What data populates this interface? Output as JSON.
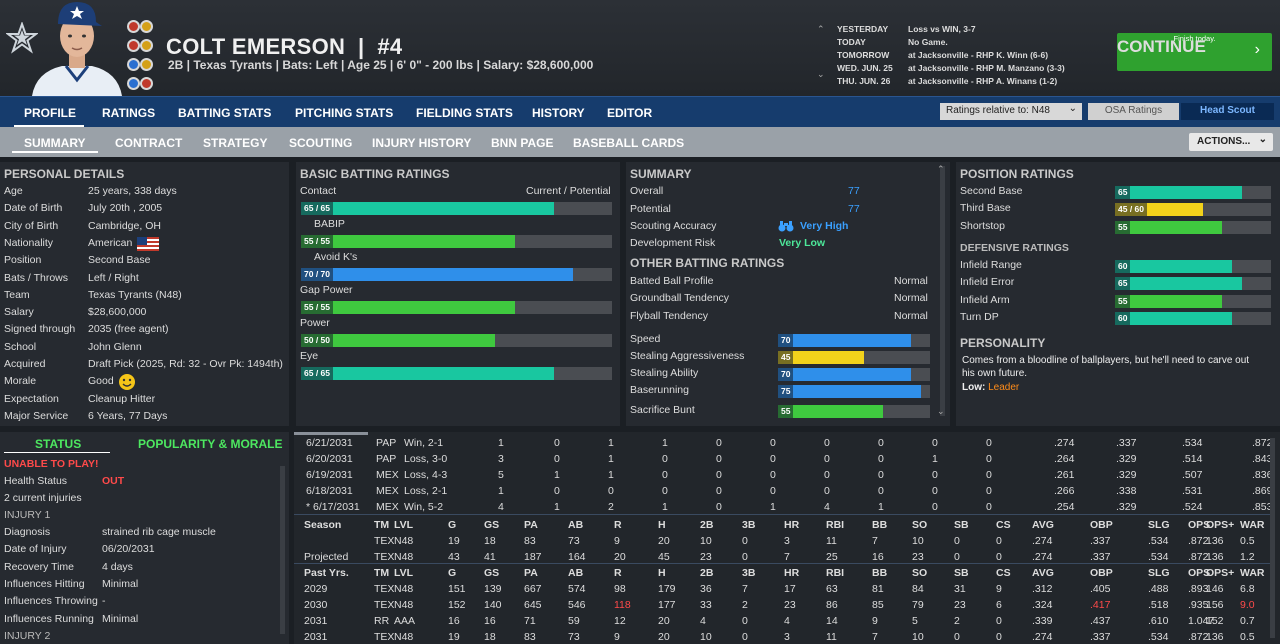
{
  "header": {
    "name": "COLT EMERSON",
    "number": "#4",
    "subline": "2B | Texas Tyrants | Bats: Left | Age 25 | 6' 0\" - 200 lbs | Salary: $28,600,000",
    "schedule": [
      {
        "day": "YESTERDAY",
        "info": "Loss vs WIN, 3-7"
      },
      {
        "day": "TODAY",
        "info": "No Game."
      },
      {
        "day": "TOMORROW",
        "info": "at Jacksonville - RHP K. Winn (6-6)"
      },
      {
        "day": "WED. JUN. 25",
        "info": "at Jacksonville - RHP M. Manzano (3-3)"
      },
      {
        "day": "THU. JUN. 26",
        "info": "at Jacksonville - RHP A. Winans (1-2)"
      }
    ],
    "continue_label": "CONTINUE",
    "continue_sub": "Finish today."
  },
  "nav1": {
    "items": [
      "PROFILE",
      "RATINGS",
      "BATTING STATS",
      "PITCHING STATS",
      "FIELDING STATS",
      "HISTORY",
      "EDITOR"
    ],
    "relative_label": "Ratings relative to: N48",
    "osa_label": "OSA Ratings",
    "scout_label": "Head Scout"
  },
  "nav2": {
    "items": [
      "SUMMARY",
      "CONTRACT",
      "STRATEGY",
      "SCOUTING",
      "INJURY HISTORY",
      "BNN PAGE",
      "BASEBALL CARDS"
    ],
    "actions_label": "ACTIONS..."
  },
  "personal": {
    "title": "PERSONAL DETAILS",
    "rows": [
      {
        "label": "Age",
        "value": "25 years, 338 days"
      },
      {
        "label": "Date of Birth",
        "value": "July 20th , 2005"
      },
      {
        "label": "City of Birth",
        "value": "Cambridge, OH"
      },
      {
        "label": "Nationality",
        "value": "American"
      },
      {
        "label": "Position",
        "value": "Second Base"
      },
      {
        "label": "Bats / Throws",
        "value": "Left / Right"
      },
      {
        "label": "Team",
        "value": "Texas Tyrants (N48)"
      },
      {
        "label": "Salary",
        "value": "$28,600,000"
      },
      {
        "label": "Signed through",
        "value": "2035 (free agent)"
      },
      {
        "label": "School",
        "value": "John Glenn"
      },
      {
        "label": "Acquired",
        "value": "Draft Pick (2025, Rd: 32 - Ovr Pk: 1494th)"
      },
      {
        "label": "Morale",
        "value": "Good"
      },
      {
        "label": "Expectation",
        "value": "Cleanup Hitter"
      },
      {
        "label": "Major Service",
        "value": "6 Years, 77 Days"
      }
    ]
  },
  "batting": {
    "title": "BASIC BATTING RATINGS",
    "header_right": "Current / Potential",
    "ratings": [
      {
        "label": "Contact",
        "text": "65 / 65",
        "value": 65,
        "color": "#19c7a0"
      },
      {
        "label": "BABIP",
        "text": "55 / 55",
        "value": 55,
        "color": "#3fc93f"
      },
      {
        "label": "Avoid K's",
        "text": "70 / 70",
        "value": 70,
        "color": "#2f8fea"
      },
      {
        "label": "Gap Power",
        "text": "55 / 55",
        "value": 55,
        "color": "#3fc93f"
      },
      {
        "label": "Power",
        "text": "50 / 50",
        "value": 50,
        "color": "#3fc93f"
      },
      {
        "label": "Eye",
        "text": "65 / 65",
        "value": 65,
        "color": "#19c7a0"
      }
    ]
  },
  "summary": {
    "title": "SUMMARY",
    "overall_label": "Overall",
    "overall": "77",
    "potential_label": "Potential",
    "potential": "77",
    "scouting_label": "Scouting Accuracy",
    "scouting": "Very High",
    "dev_label": "Development Risk",
    "dev": "Very Low",
    "other_title": "OTHER BATTING RATINGS",
    "tendencies": [
      {
        "label": "Batted Ball Profile",
        "value": "Normal"
      },
      {
        "label": "Groundball Tendency",
        "value": "Normal"
      },
      {
        "label": "Flyball Tendency",
        "value": "Normal"
      }
    ],
    "running": [
      {
        "label": "Speed",
        "value": 70,
        "color": "#2f8fea"
      },
      {
        "label": "Stealing Aggressiveness",
        "value": 45,
        "color": "#f2d21b"
      },
      {
        "label": "Stealing Ability",
        "value": 70,
        "color": "#2f8fea"
      },
      {
        "label": "Baserunning",
        "value": 75,
        "color": "#2f8fea"
      },
      {
        "label": "Sacrifice Bunt",
        "value": 55,
        "color": "#3fc93f"
      }
    ]
  },
  "position": {
    "title": "POSITION RATINGS",
    "positions": [
      {
        "label": "Second Base",
        "text": "65",
        "value": 65,
        "color": "#19c7a0"
      },
      {
        "label": "Third Base",
        "text": "45 / 60",
        "value": 45,
        "color": "#f2d21b"
      },
      {
        "label": "Shortstop",
        "text": "55",
        "value": 55,
        "color": "#3fc93f"
      }
    ],
    "def_title": "DEFENSIVE RATINGS",
    "defense": [
      {
        "label": "Infield Range",
        "text": "60",
        "value": 60,
        "color": "#19c7a0"
      },
      {
        "label": "Infield Error",
        "text": "65",
        "value": 65,
        "color": "#19c7a0"
      },
      {
        "label": "Infield Arm",
        "text": "55",
        "value": 55,
        "color": "#3fc93f"
      },
      {
        "label": "Turn DP",
        "text": "60",
        "value": 60,
        "color": "#19c7a0"
      }
    ],
    "personality_title": "PERSONALITY",
    "personality_text": "Comes from a bloodline of ballplayers, but he'll need to carve out his own future.",
    "low_label": "Low:",
    "low_value": "Leader"
  },
  "status": {
    "tab_status": "STATUS",
    "tab_popularity": "POPULARITY & MORALE",
    "unable": "UNABLE TO PLAY!",
    "health_label": "Health Status",
    "health_value": "OUT",
    "injuries_count": "2 current injuries",
    "injury1": "INJURY 1",
    "rows": [
      {
        "label": "Diagnosis",
        "value": "strained rib cage muscle"
      },
      {
        "label": "Date of Injury",
        "value": "06/20/2031"
      },
      {
        "label": "Recovery Time",
        "value": "4 days"
      },
      {
        "label": "Influences Hitting",
        "value": "Minimal"
      },
      {
        "label": "Influences Throwing",
        "value": "-"
      },
      {
        "label": "Influences Running",
        "value": "Minimal"
      }
    ],
    "injury2": "INJURY 2"
  },
  "stats": {
    "game_rows": [
      [
        "6/21/2031",
        "PAP",
        "Win, 2-1",
        "1",
        "0",
        "1",
        "1",
        "0",
        "0",
        "0",
        "0",
        "0",
        "0",
        ".274",
        ".337",
        ".534",
        ".872"
      ],
      [
        "6/20/2031",
        "PAP",
        "Loss, 3-0",
        "3",
        "0",
        "1",
        "0",
        "0",
        "0",
        "0",
        "0",
        "1",
        "0",
        ".264",
        ".329",
        ".514",
        ".843"
      ],
      [
        "6/19/2031",
        "MEX",
        "Loss, 4-3",
        "5",
        "1",
        "1",
        "0",
        "0",
        "0",
        "0",
        "0",
        "0",
        "0",
        ".261",
        ".329",
        ".507",
        ".836"
      ],
      [
        "6/18/2031",
        "MEX",
        "Loss, 2-1",
        "1",
        "0",
        "0",
        "0",
        "0",
        "0",
        "0",
        "0",
        "0",
        "0",
        ".266",
        ".338",
        ".531",
        ".869"
      ],
      [
        "* 6/17/2031",
        "MEX",
        "Win, 5-2",
        "4",
        "1",
        "2",
        "1",
        "0",
        "1",
        "4",
        "1",
        "0",
        "0",
        ".254",
        ".329",
        ".524",
        ".853"
      ]
    ],
    "season_header": [
      "Season",
      "TM",
      "LVL",
      "G",
      "GS",
      "PA",
      "AB",
      "R",
      "H",
      "2B",
      "3B",
      "HR",
      "RBI",
      "BB",
      "SO",
      "SB",
      "CS",
      "AVG",
      "OBP",
      "SLG",
      "OPS",
      "OPS+",
      "WAR"
    ],
    "season_rows": [
      [
        "",
        "TEX",
        "N48",
        "19",
        "18",
        "83",
        "73",
        "9",
        "20",
        "10",
        "0",
        "3",
        "11",
        "7",
        "10",
        "0",
        "0",
        ".274",
        ".337",
        ".534",
        ".872",
        "136",
        "0.5"
      ],
      [
        "Projected",
        "TEX",
        "N48",
        "43",
        "41",
        "187",
        "164",
        "20",
        "45",
        "23",
        "0",
        "7",
        "25",
        "16",
        "23",
        "0",
        "0",
        ".274",
        ".337",
        ".534",
        ".872",
        "136",
        "1.2"
      ]
    ],
    "past_header": [
      "Past Yrs.",
      "TM",
      "LVL",
      "G",
      "GS",
      "PA",
      "AB",
      "R",
      "H",
      "2B",
      "3B",
      "HR",
      "RBI",
      "BB",
      "SO",
      "SB",
      "CS",
      "AVG",
      "OBP",
      "SLG",
      "OPS",
      "OPS+",
      "WAR"
    ],
    "past_rows": [
      [
        "2029",
        "TEX",
        "N48",
        "151",
        "139",
        "667",
        "574",
        "98",
        "179",
        "36",
        "7",
        "17",
        "63",
        "81",
        "84",
        "31",
        "9",
        ".312",
        ".405",
        ".488",
        ".893",
        "146",
        "6.8"
      ],
      [
        "2030",
        "TEX",
        "N48",
        "152",
        "140",
        "645",
        "546",
        "118",
        "177",
        "33",
        "2",
        "23",
        "86",
        "85",
        "79",
        "23",
        "6",
        ".324",
        ".417",
        ".518",
        ".935",
        "156",
        "9.0"
      ],
      [
        "2031",
        "RR",
        "AAA",
        "16",
        "16",
        "71",
        "59",
        "12",
        "20",
        "4",
        "0",
        "4",
        "14",
        "9",
        "5",
        "2",
        "0",
        ".339",
        ".437",
        ".610",
        "1.047",
        "152",
        "0.7"
      ],
      [
        "2031",
        "TEX",
        "N48",
        "19",
        "18",
        "83",
        "73",
        "9",
        "20",
        "10",
        "0",
        "3",
        "11",
        "7",
        "10",
        "0",
        "0",
        ".274",
        ".337",
        ".534",
        ".872",
        "136",
        "0.5"
      ]
    ],
    "highlight_color": "#ff4a4a"
  }
}
